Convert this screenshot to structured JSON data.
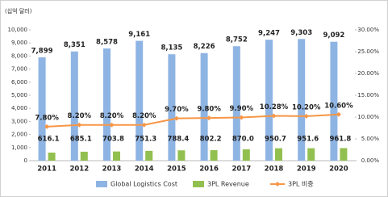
{
  "chart_data": {
    "type": "bar",
    "y_label": "(십억 달러)",
    "categories": [
      "2011",
      "2012",
      "2013",
      "2014",
      "2015",
      "2016",
      "2017",
      "2018",
      "2019",
      "2020"
    ],
    "series": [
      {
        "name": "Global Logistics Cost",
        "color": "#8eb4e3",
        "values": [
          7899,
          8351,
          8578,
          9161,
          8135,
          8226,
          8752,
          9247,
          9303,
          9092
        ],
        "value_labels": [
          "7,899",
          "8,351",
          "8,578",
          "9,161",
          "8,135",
          "8,226",
          "8,752",
          "9,247",
          "9,303",
          "9,092"
        ]
      },
      {
        "name": "3PL Revenue",
        "color": "#92c050",
        "values": [
          616.1,
          685.1,
          703.8,
          751.3,
          788.4,
          802.2,
          870.0,
          950.7,
          951.6,
          961.8
        ],
        "value_labels": [
          "616.1",
          "685.1",
          "703.8",
          "751.3",
          "788.4",
          "802.2",
          "870.0",
          "950.7",
          "951.6",
          "961.8"
        ]
      },
      {
        "name": "3PL 비중",
        "type": "line",
        "axis": "y2",
        "color": "#f79646",
        "values": [
          7.8,
          8.2,
          8.2,
          8.2,
          9.7,
          9.8,
          9.9,
          10.28,
          10.2,
          10.6
        ],
        "value_labels": [
          "7.80%",
          "8.20%",
          "8.20%",
          "8.20%",
          "9.70%",
          "9.80%",
          "9.90%",
          "10.28%",
          "10.20%",
          "10.60%"
        ]
      }
    ],
    "ylim": [
      0,
      10000
    ],
    "yticks": [
      0,
      {
        "value": 1000,
        "label": "1,000"
      },
      {
        "value": 2000,
        "label": "2,000"
      },
      {
        "value": 3000,
        "label": "3,000"
      },
      {
        "value": 4000,
        "label": "4,000"
      },
      {
        "value": 5000,
        "label": "5,000"
      },
      {
        "value": 6000,
        "label": "6,000"
      },
      {
        "value": 7000,
        "label": "7,000"
      },
      {
        "value": 8000,
        "label": "8,000"
      },
      {
        "value": 9000,
        "label": "9,000"
      },
      {
        "value": 10000,
        "label": "10,000"
      }
    ],
    "y2lim": [
      0,
      30
    ],
    "y2ticks": [
      {
        "value": 0,
        "label": "0.00%"
      },
      {
        "value": 5,
        "label": "5.00%"
      },
      {
        "value": 10,
        "label": "10.00%"
      },
      {
        "value": 15,
        "label": "15.00%"
      },
      {
        "value": 20,
        "label": "20.00%"
      },
      {
        "value": 25,
        "label": "25.00%"
      },
      {
        "value": 30,
        "label": "30.00%"
      }
    ],
    "grid": false,
    "legend": "bottom"
  }
}
